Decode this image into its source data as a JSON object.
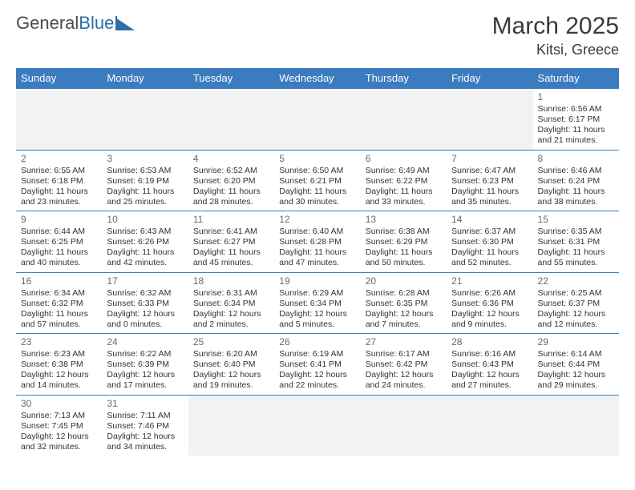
{
  "logo": {
    "part1": "General",
    "part2": "Blue"
  },
  "title": {
    "month": "March 2025",
    "location": "Kitsi, Greece"
  },
  "weekdays": [
    "Sunday",
    "Monday",
    "Tuesday",
    "Wednesday",
    "Thursday",
    "Friday",
    "Saturday"
  ],
  "colors": {
    "header_bg": "#3b7bbf",
    "header_fg": "#ffffff",
    "border": "#3b7bbf",
    "blank_bg": "#f2f2f2",
    "text": "#333333",
    "daynum": "#6a6a6a"
  },
  "weeks": [
    [
      null,
      null,
      null,
      null,
      null,
      null,
      {
        "n": "1",
        "sr": "Sunrise: 6:56 AM",
        "ss": "Sunset: 6:17 PM",
        "dl": "Daylight: 11 hours and 21 minutes."
      }
    ],
    [
      {
        "n": "2",
        "sr": "Sunrise: 6:55 AM",
        "ss": "Sunset: 6:18 PM",
        "dl": "Daylight: 11 hours and 23 minutes."
      },
      {
        "n": "3",
        "sr": "Sunrise: 6:53 AM",
        "ss": "Sunset: 6:19 PM",
        "dl": "Daylight: 11 hours and 25 minutes."
      },
      {
        "n": "4",
        "sr": "Sunrise: 6:52 AM",
        "ss": "Sunset: 6:20 PM",
        "dl": "Daylight: 11 hours and 28 minutes."
      },
      {
        "n": "5",
        "sr": "Sunrise: 6:50 AM",
        "ss": "Sunset: 6:21 PM",
        "dl": "Daylight: 11 hours and 30 minutes."
      },
      {
        "n": "6",
        "sr": "Sunrise: 6:49 AM",
        "ss": "Sunset: 6:22 PM",
        "dl": "Daylight: 11 hours and 33 minutes."
      },
      {
        "n": "7",
        "sr": "Sunrise: 6:47 AM",
        "ss": "Sunset: 6:23 PM",
        "dl": "Daylight: 11 hours and 35 minutes."
      },
      {
        "n": "8",
        "sr": "Sunrise: 6:46 AM",
        "ss": "Sunset: 6:24 PM",
        "dl": "Daylight: 11 hours and 38 minutes."
      }
    ],
    [
      {
        "n": "9",
        "sr": "Sunrise: 6:44 AM",
        "ss": "Sunset: 6:25 PM",
        "dl": "Daylight: 11 hours and 40 minutes."
      },
      {
        "n": "10",
        "sr": "Sunrise: 6:43 AM",
        "ss": "Sunset: 6:26 PM",
        "dl": "Daylight: 11 hours and 42 minutes."
      },
      {
        "n": "11",
        "sr": "Sunrise: 6:41 AM",
        "ss": "Sunset: 6:27 PM",
        "dl": "Daylight: 11 hours and 45 minutes."
      },
      {
        "n": "12",
        "sr": "Sunrise: 6:40 AM",
        "ss": "Sunset: 6:28 PM",
        "dl": "Daylight: 11 hours and 47 minutes."
      },
      {
        "n": "13",
        "sr": "Sunrise: 6:38 AM",
        "ss": "Sunset: 6:29 PM",
        "dl": "Daylight: 11 hours and 50 minutes."
      },
      {
        "n": "14",
        "sr": "Sunrise: 6:37 AM",
        "ss": "Sunset: 6:30 PM",
        "dl": "Daylight: 11 hours and 52 minutes."
      },
      {
        "n": "15",
        "sr": "Sunrise: 6:35 AM",
        "ss": "Sunset: 6:31 PM",
        "dl": "Daylight: 11 hours and 55 minutes."
      }
    ],
    [
      {
        "n": "16",
        "sr": "Sunrise: 6:34 AM",
        "ss": "Sunset: 6:32 PM",
        "dl": "Daylight: 11 hours and 57 minutes."
      },
      {
        "n": "17",
        "sr": "Sunrise: 6:32 AM",
        "ss": "Sunset: 6:33 PM",
        "dl": "Daylight: 12 hours and 0 minutes."
      },
      {
        "n": "18",
        "sr": "Sunrise: 6:31 AM",
        "ss": "Sunset: 6:34 PM",
        "dl": "Daylight: 12 hours and 2 minutes."
      },
      {
        "n": "19",
        "sr": "Sunrise: 6:29 AM",
        "ss": "Sunset: 6:34 PM",
        "dl": "Daylight: 12 hours and 5 minutes."
      },
      {
        "n": "20",
        "sr": "Sunrise: 6:28 AM",
        "ss": "Sunset: 6:35 PM",
        "dl": "Daylight: 12 hours and 7 minutes."
      },
      {
        "n": "21",
        "sr": "Sunrise: 6:26 AM",
        "ss": "Sunset: 6:36 PM",
        "dl": "Daylight: 12 hours and 9 minutes."
      },
      {
        "n": "22",
        "sr": "Sunrise: 6:25 AM",
        "ss": "Sunset: 6:37 PM",
        "dl": "Daylight: 12 hours and 12 minutes."
      }
    ],
    [
      {
        "n": "23",
        "sr": "Sunrise: 6:23 AM",
        "ss": "Sunset: 6:38 PM",
        "dl": "Daylight: 12 hours and 14 minutes."
      },
      {
        "n": "24",
        "sr": "Sunrise: 6:22 AM",
        "ss": "Sunset: 6:39 PM",
        "dl": "Daylight: 12 hours and 17 minutes."
      },
      {
        "n": "25",
        "sr": "Sunrise: 6:20 AM",
        "ss": "Sunset: 6:40 PM",
        "dl": "Daylight: 12 hours and 19 minutes."
      },
      {
        "n": "26",
        "sr": "Sunrise: 6:19 AM",
        "ss": "Sunset: 6:41 PM",
        "dl": "Daylight: 12 hours and 22 minutes."
      },
      {
        "n": "27",
        "sr": "Sunrise: 6:17 AM",
        "ss": "Sunset: 6:42 PM",
        "dl": "Daylight: 12 hours and 24 minutes."
      },
      {
        "n": "28",
        "sr": "Sunrise: 6:16 AM",
        "ss": "Sunset: 6:43 PM",
        "dl": "Daylight: 12 hours and 27 minutes."
      },
      {
        "n": "29",
        "sr": "Sunrise: 6:14 AM",
        "ss": "Sunset: 6:44 PM",
        "dl": "Daylight: 12 hours and 29 minutes."
      }
    ],
    [
      {
        "n": "30",
        "sr": "Sunrise: 7:13 AM",
        "ss": "Sunset: 7:45 PM",
        "dl": "Daylight: 12 hours and 32 minutes."
      },
      {
        "n": "31",
        "sr": "Sunrise: 7:11 AM",
        "ss": "Sunset: 7:46 PM",
        "dl": "Daylight: 12 hours and 34 minutes."
      },
      null,
      null,
      null,
      null,
      null
    ]
  ]
}
